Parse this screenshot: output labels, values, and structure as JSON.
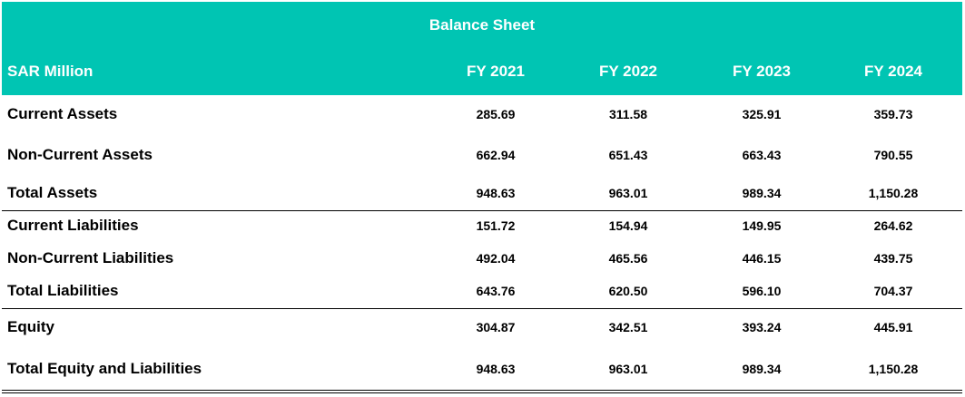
{
  "table": {
    "title": "Balance Sheet",
    "unit_label": "SAR Million",
    "columns": [
      "FY 2021",
      "FY 2022",
      "FY 2023",
      "FY 2024"
    ],
    "rows": [
      {
        "label": "Current Assets",
        "values": [
          "285.69",
          "311.58",
          "325.91",
          "359.73"
        ]
      },
      {
        "label": "Non-Current Assets",
        "values": [
          "662.94",
          "651.43",
          "663.43",
          "790.55"
        ]
      },
      {
        "label": "Total Assets",
        "values": [
          "948.63",
          "963.01",
          "989.34",
          "1,150.28"
        ]
      },
      {
        "label": "Current Liabilities",
        "values": [
          "151.72",
          "154.94",
          "149.95",
          "264.62"
        ]
      },
      {
        "label": "Non-Current Liabilities",
        "values": [
          "492.04",
          "465.56",
          "446.15",
          "439.75"
        ]
      },
      {
        "label": "Total Liabilities",
        "values": [
          "643.76",
          "620.50",
          "596.10",
          "704.37"
        ]
      },
      {
        "label": "Equity",
        "values": [
          "304.87",
          "342.51",
          "393.24",
          "445.91"
        ]
      },
      {
        "label": "Total Equity and Liabilities",
        "values": [
          "948.63",
          "963.01",
          "989.34",
          "1,150.28"
        ]
      }
    ]
  },
  "colors": {
    "header_bg": "#00c5b3",
    "header_text": "#ffffff",
    "body_text": "#000000"
  }
}
